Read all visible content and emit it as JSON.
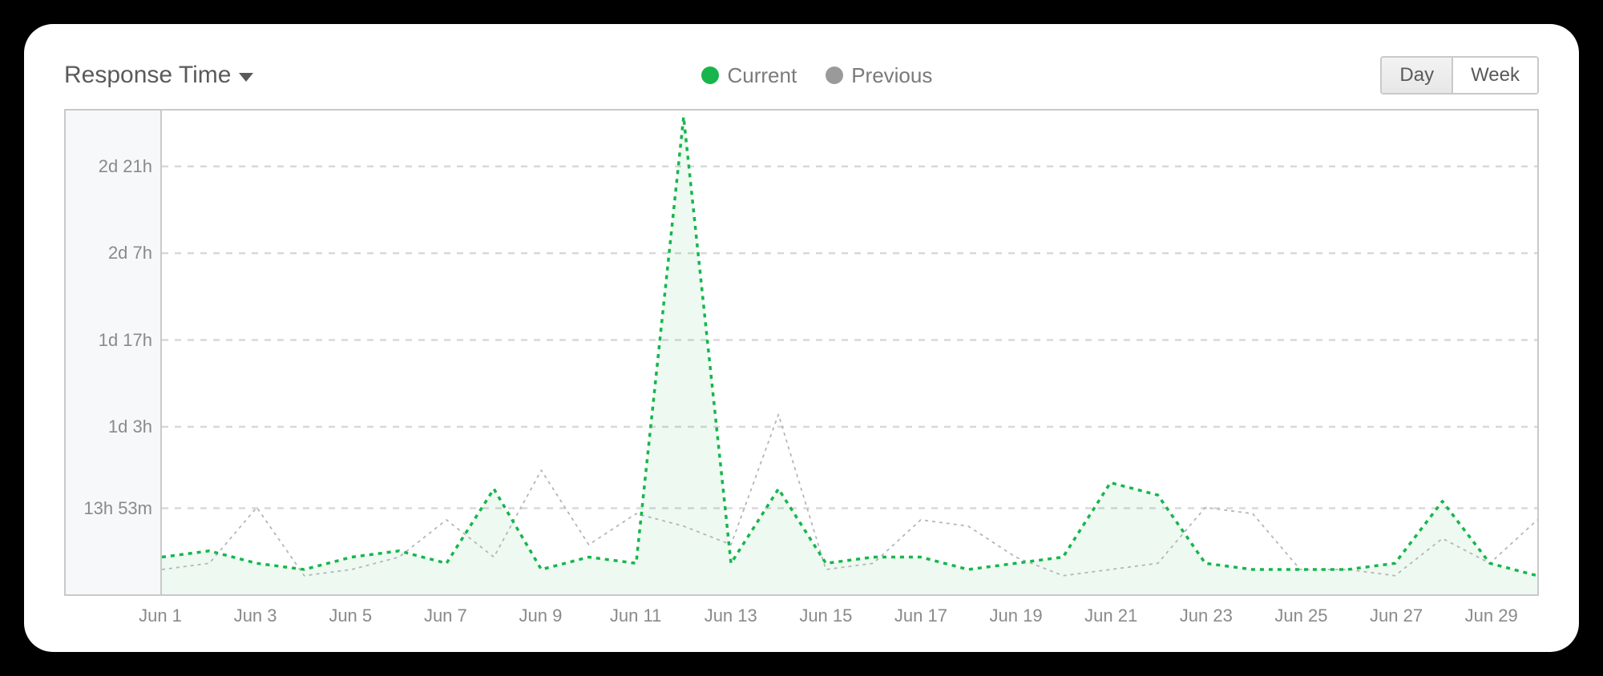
{
  "title": "Response Time",
  "legend": {
    "current": {
      "label": "Current",
      "color": "#16b64c"
    },
    "previous": {
      "label": "Previous",
      "color": "#9a9a9a"
    }
  },
  "toggle": {
    "options": [
      "Day",
      "Week"
    ],
    "active": "Day"
  },
  "chart": {
    "type": "line",
    "background_color": "#ffffff",
    "yaxis_bg": "#f7f8fa",
    "border_color": "#c9c9c9",
    "grid_color": "#d8d8d8",
    "grid_dash": "8 8",
    "y_max_hours": 78,
    "y_ticks": [
      {
        "hours": 13.88,
        "label": "13h 53m"
      },
      {
        "hours": 27,
        "label": "1d 3h"
      },
      {
        "hours": 41,
        "label": "1d 17h"
      },
      {
        "hours": 55,
        "label": "2d 7h"
      },
      {
        "hours": 69,
        "label": "2d 21h"
      }
    ],
    "x_categories": [
      "Jun 1",
      "Jun 2",
      "Jun 3",
      "Jun 4",
      "Jun 5",
      "Jun 6",
      "Jun 7",
      "Jun 8",
      "Jun 9",
      "Jun 10",
      "Jun 11",
      "Jun 12",
      "Jun 13",
      "Jun 14",
      "Jun 15",
      "Jun 16",
      "Jun 17",
      "Jun 18",
      "Jun 19",
      "Jun 20",
      "Jun 21",
      "Jun 22",
      "Jun 23",
      "Jun 24",
      "Jun 25",
      "Jun 26",
      "Jun 27",
      "Jun 28",
      "Jun 29",
      "Jun 30"
    ],
    "x_tick_step": 2,
    "series": {
      "current": {
        "color": "#16b64c",
        "fill": "#16b64c",
        "fill_opacity": 0.08,
        "width": 3.5,
        "dash": "5 6",
        "values_hours": [
          6,
          7,
          5,
          4,
          6,
          7,
          5,
          17,
          4,
          6,
          5,
          77,
          5,
          17,
          5,
          6,
          6,
          4,
          5,
          6,
          18,
          16,
          5,
          4,
          4,
          4,
          5,
          15,
          5,
          3
        ]
      },
      "previous": {
        "color": "#b6b6b6",
        "width": 1.8,
        "dash": "4 5",
        "values_hours": [
          4,
          5,
          14,
          3,
          4,
          6,
          12,
          6,
          20,
          8,
          13,
          11,
          8,
          29,
          4,
          5,
          12,
          11,
          6,
          3,
          4,
          5,
          14,
          13,
          4,
          4,
          3,
          9,
          5,
          12
        ]
      }
    }
  }
}
